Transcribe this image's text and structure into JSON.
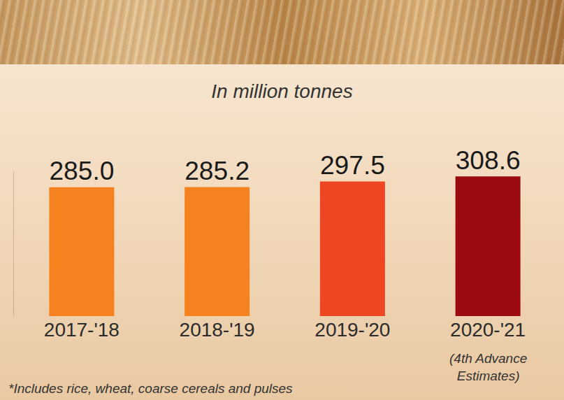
{
  "chart_data": {
    "type": "bar",
    "subtitle": "In million tonnes",
    "categories": [
      "2017-'18",
      "2018-'19",
      "2019-'20",
      "2020-'21"
    ],
    "values": [
      285.0,
      285.2,
      297.5,
      308.6
    ],
    "value_labels": [
      "285.0",
      "285.2",
      "297.5",
      "308.6"
    ],
    "colors": [
      "#f5821f",
      "#f5821f",
      "#ee4523",
      "#9b0a0e"
    ],
    "ylim": [
      0,
      320
    ],
    "yticks": [],
    "grid": false,
    "data_labels": true,
    "tick_labels": "x",
    "annotations": [
      {
        "text": "(4th Advance Estimates)",
        "category": "2020-'21"
      }
    ],
    "footnote": "*Includes rice, wheat, coarse cereals and pulses"
  }
}
